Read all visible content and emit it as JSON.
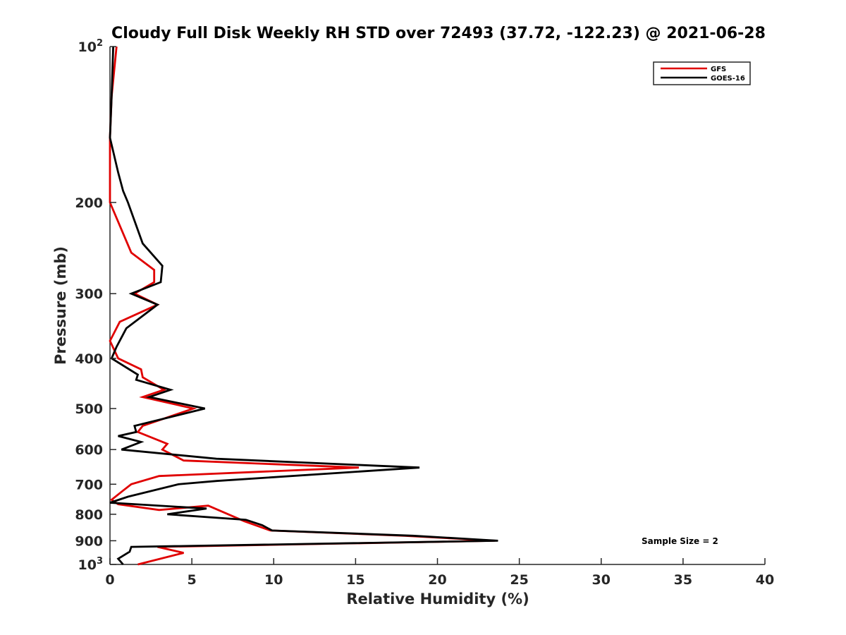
{
  "chart_data": {
    "type": "line",
    "title": "Cloudy Full Disk Weekly RH STD over 72493 (37.72, -122.23) @ 2021-06-28",
    "xlabel": "Relative Humidity (%)",
    "ylabel": "Pressure (mb)",
    "xlim": [
      0,
      40
    ],
    "ylim": [
      100,
      1000
    ],
    "y_scale": "log",
    "y_inverted": true,
    "x_ticks": [
      0,
      5,
      10,
      15,
      20,
      25,
      30,
      35,
      40
    ],
    "y_ticks": [
      {
        "value": 100,
        "base": "10",
        "exp": "2"
      },
      {
        "value": 200,
        "label": "200"
      },
      {
        "value": 300,
        "label": "300"
      },
      {
        "value": 400,
        "label": "400"
      },
      {
        "value": 500,
        "label": "500"
      },
      {
        "value": 600,
        "label": "600"
      },
      {
        "value": 700,
        "label": "700"
      },
      {
        "value": 800,
        "label": "800"
      },
      {
        "value": 900,
        "label": "900"
      },
      {
        "value": 1000,
        "base": "10",
        "exp": "3"
      }
    ],
    "grid": false,
    "legend_position": "top-right",
    "annotation": "Sample Size = 2",
    "series": [
      {
        "name": "GFS",
        "color": "#e00000",
        "points": [
          [
            0.4,
            100
          ],
          [
            0.1,
            125
          ],
          [
            0.0,
            150
          ],
          [
            0.0,
            175
          ],
          [
            0.0,
            200
          ],
          [
            1.3,
            250
          ],
          [
            2.7,
            270
          ],
          [
            2.7,
            285
          ],
          [
            1.5,
            300
          ],
          [
            2.9,
            315
          ],
          [
            0.6,
            340
          ],
          [
            0.0,
            370
          ],
          [
            0.5,
            400
          ],
          [
            1.9,
            420
          ],
          [
            2.0,
            435
          ],
          [
            3.3,
            460
          ],
          [
            2.0,
            475
          ],
          [
            5.1,
            500
          ],
          [
            2.0,
            540
          ],
          [
            1.7,
            555
          ],
          [
            3.5,
            585
          ],
          [
            3.2,
            600
          ],
          [
            4.5,
            630
          ],
          [
            15.2,
            650
          ],
          [
            3.0,
            675
          ],
          [
            1.3,
            700
          ],
          [
            0.8,
            720
          ],
          [
            0.1,
            750
          ],
          [
            0.5,
            765
          ],
          [
            3.0,
            785
          ],
          [
            6.0,
            770
          ],
          [
            8.2,
            825
          ],
          [
            9.8,
            860
          ],
          [
            18.0,
            880
          ],
          [
            23.5,
            900
          ],
          [
            2.9,
            925
          ],
          [
            4.5,
            950
          ],
          [
            1.7,
            1000
          ]
        ]
      },
      {
        "name": "GOES-16",
        "color": "#000000",
        "points": [
          [
            0.2,
            100
          ],
          [
            0.1,
            125
          ],
          [
            0.0,
            150
          ],
          [
            0.5,
            175
          ],
          [
            0.8,
            190
          ],
          [
            1.1,
            200
          ],
          [
            2.0,
            240
          ],
          [
            3.2,
            265
          ],
          [
            3.1,
            285
          ],
          [
            1.3,
            300
          ],
          [
            2.9,
            315
          ],
          [
            1.0,
            350
          ],
          [
            0.4,
            380
          ],
          [
            0.1,
            400
          ],
          [
            1.7,
            430
          ],
          [
            1.6,
            440
          ],
          [
            3.7,
            460
          ],
          [
            2.4,
            475
          ],
          [
            5.8,
            500
          ],
          [
            1.5,
            540
          ],
          [
            1.6,
            555
          ],
          [
            0.5,
            565
          ],
          [
            1.9,
            580
          ],
          [
            0.7,
            600
          ],
          [
            6.5,
            625
          ],
          [
            18.9,
            650
          ],
          [
            6.5,
            690
          ],
          [
            4.2,
            700
          ],
          [
            1.1,
            740
          ],
          [
            0.0,
            760
          ],
          [
            5.9,
            780
          ],
          [
            3.5,
            800
          ],
          [
            8.3,
            820
          ],
          [
            9.3,
            840
          ],
          [
            9.9,
            860
          ],
          [
            18.5,
            880
          ],
          [
            23.7,
            900
          ],
          [
            1.3,
            925
          ],
          [
            1.2,
            945
          ],
          [
            0.5,
            975
          ],
          [
            0.8,
            1000
          ]
        ]
      }
    ]
  }
}
